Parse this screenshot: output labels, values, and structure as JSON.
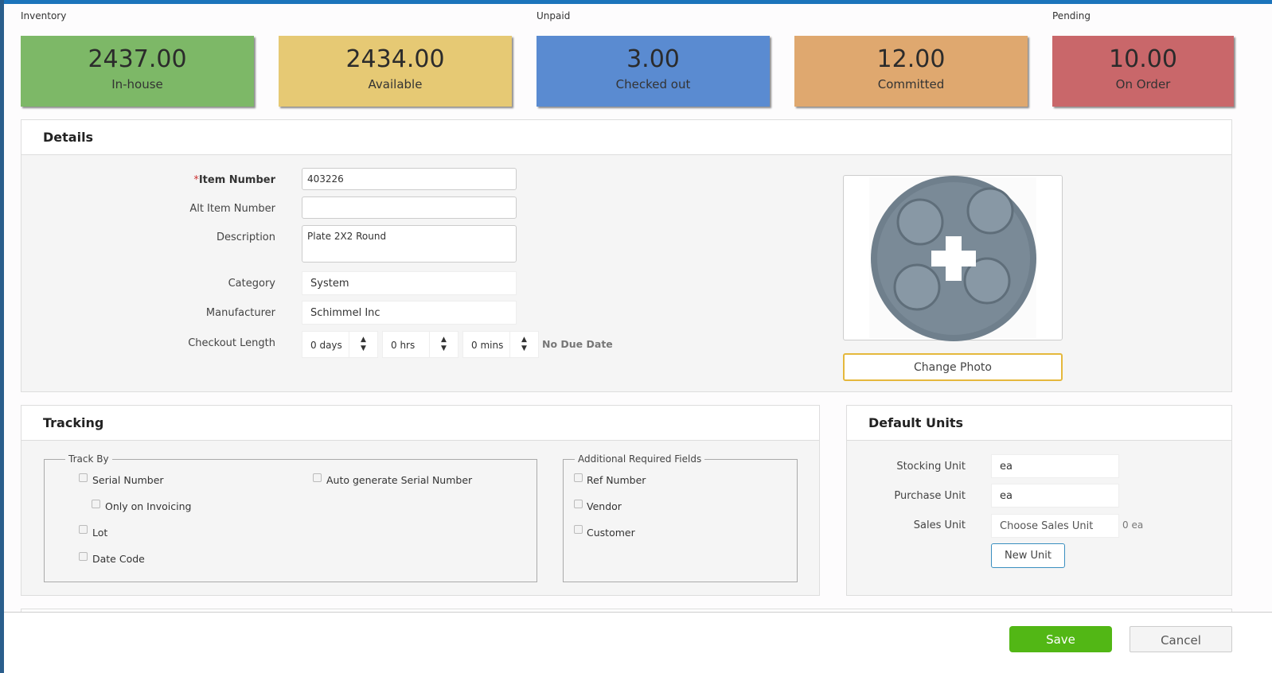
{
  "groups": {
    "inventory": "Inventory",
    "unpaid": "Unpaid",
    "pending": "Pending"
  },
  "cards": [
    {
      "value": "2437.00",
      "label": "In-house",
      "color": "#7db867"
    },
    {
      "value": "2434.00",
      "label": "Available",
      "color": "#e6c974"
    },
    {
      "value": "3.00",
      "label": "Checked out",
      "color": "#5a8bd1"
    },
    {
      "value": "12.00",
      "label": "Committed",
      "color": "#dfa86f"
    },
    {
      "value": "10.00",
      "label": "On Order",
      "color": "#c9676a"
    }
  ],
  "details": {
    "title": "Details",
    "required_mark": "*",
    "item_number_label": "Item Number",
    "item_number": "403226",
    "alt_item_number_label": "Alt Item Number",
    "alt_item_number": "",
    "description_label": "Description",
    "description": "Plate 2X2 Round",
    "category_label": "Category",
    "category": "System",
    "manufacturer_label": "Manufacturer",
    "manufacturer": "Schimmel Inc",
    "checkout_label": "Checkout Length",
    "days": "0 days",
    "hrs": "0 hrs",
    "mins": "0 mins",
    "no_due_date": "No Due Date",
    "change_photo": "Change Photo"
  },
  "tracking": {
    "title": "Tracking",
    "track_by": "Track By",
    "serial": "Serial Number",
    "auto_serial": "Auto generate Serial Number",
    "only_invoicing": "Only on Invoicing",
    "lot": "Lot",
    "date_code": "Date Code",
    "additional": "Additional Required Fields",
    "ref": "Ref Number",
    "vendor": "Vendor",
    "customer": "Customer"
  },
  "units": {
    "title": "Default Units",
    "stocking_label": "Stocking Unit",
    "stocking": "ea",
    "purchase_label": "Purchase Unit",
    "purchase": "ea",
    "sales_label": "Sales Unit",
    "sales_placeholder": "Choose Sales Unit",
    "sales_note": "0 ea",
    "new_unit": "New Unit"
  },
  "footer": {
    "save": "Save",
    "cancel": "Cancel"
  }
}
